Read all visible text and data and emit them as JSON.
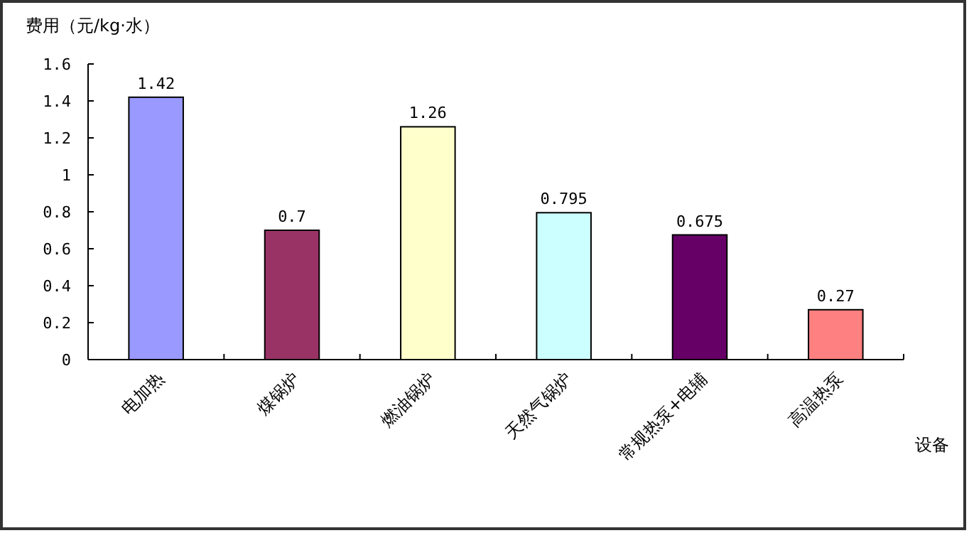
{
  "chart_data": {
    "type": "bar",
    "ylabel": "费用（元/kg·水）",
    "xlabel": "设备",
    "categories": [
      "电加热",
      "煤锅炉",
      "燃油锅炉",
      "天然气锅炉",
      "常规热泵+电辅",
      "高温热泵"
    ],
    "values": [
      1.42,
      0.7,
      1.26,
      0.795,
      0.675,
      0.27
    ],
    "colors": [
      "#9999ff",
      "#993366",
      "#ffffcc",
      "#ccffff",
      "#660066",
      "#ff8080"
    ],
    "ylim": [
      0,
      1.6
    ],
    "yticks": [
      0,
      0.2,
      0.4,
      0.6,
      0.8,
      1,
      1.2,
      1.4,
      1.6
    ],
    "data_labels": true
  }
}
